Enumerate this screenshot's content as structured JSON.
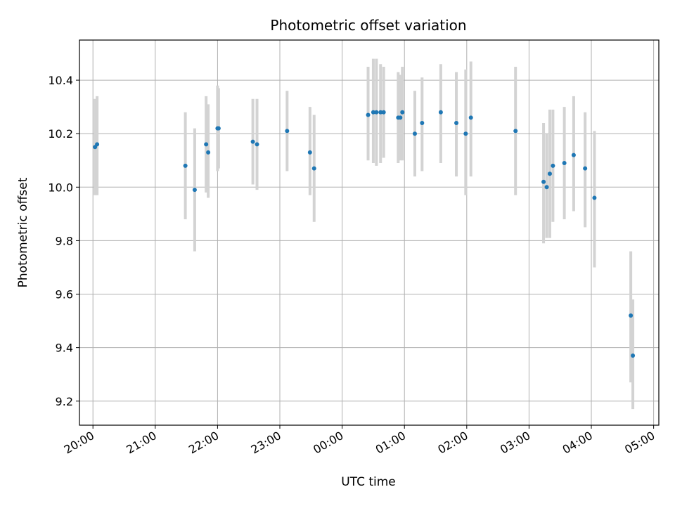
{
  "chart_data": {
    "type": "scatter",
    "title": "Photometric offset variation",
    "xlabel": "UTC time",
    "ylabel": "Photometric offset",
    "grid": true,
    "x_is_time": true,
    "x_range": [
      "19:47",
      "05:05"
    ],
    "y_range": [
      9.11,
      10.55
    ],
    "x_ticks": [
      "20:00",
      "21:00",
      "22:00",
      "23:00",
      "00:00",
      "01:00",
      "02:00",
      "03:00",
      "04:00",
      "05:00"
    ],
    "y_ticks": [
      "9.2",
      "9.4",
      "9.6",
      "9.8",
      "10.0",
      "10.2",
      "10.4"
    ],
    "colors": {
      "point": "#1f77b4",
      "errorbar": "#d3d3d3",
      "grid": "#b0b0b0"
    },
    "points": [
      {
        "t": "20:02",
        "y": 10.15,
        "lo": 9.97,
        "hi": 10.33
      },
      {
        "t": "20:04",
        "y": 10.16,
        "lo": 9.97,
        "hi": 10.34
      },
      {
        "t": "21:29",
        "y": 10.08,
        "lo": 9.88,
        "hi": 10.28
      },
      {
        "t": "21:38",
        "y": 9.99,
        "lo": 9.76,
        "hi": 10.22
      },
      {
        "t": "21:49",
        "y": 10.16,
        "lo": 9.98,
        "hi": 10.34
      },
      {
        "t": "21:51",
        "y": 10.13,
        "lo": 9.96,
        "hi": 10.31
      },
      {
        "t": "22:00",
        "y": 10.22,
        "lo": 10.06,
        "hi": 10.38
      },
      {
        "t": "22:01",
        "y": 10.22,
        "lo": 10.07,
        "hi": 10.37
      },
      {
        "t": "22:34",
        "y": 10.17,
        "lo": 10.01,
        "hi": 10.33
      },
      {
        "t": "22:38",
        "y": 10.16,
        "lo": 9.99,
        "hi": 10.33
      },
      {
        "t": "23:07",
        "y": 10.21,
        "lo": 10.06,
        "hi": 10.36
      },
      {
        "t": "23:29",
        "y": 10.13,
        "lo": 9.97,
        "hi": 10.3
      },
      {
        "t": "23:33",
        "y": 10.07,
        "lo": 9.87,
        "hi": 10.27
      },
      {
        "t": "00:25",
        "y": 10.27,
        "lo": 10.1,
        "hi": 10.45
      },
      {
        "t": "00:30",
        "y": 10.28,
        "lo": 10.09,
        "hi": 10.48
      },
      {
        "t": "00:33",
        "y": 10.28,
        "lo": 10.08,
        "hi": 10.48
      },
      {
        "t": "00:37",
        "y": 10.28,
        "lo": 10.09,
        "hi": 10.46
      },
      {
        "t": "00:40",
        "y": 10.28,
        "lo": 10.11,
        "hi": 10.45
      },
      {
        "t": "00:54",
        "y": 10.26,
        "lo": 10.09,
        "hi": 10.43
      },
      {
        "t": "00:56",
        "y": 10.26,
        "lo": 10.1,
        "hi": 10.42
      },
      {
        "t": "00:58",
        "y": 10.28,
        "lo": 10.1,
        "hi": 10.45
      },
      {
        "t": "01:10",
        "y": 10.2,
        "lo": 10.04,
        "hi": 10.36
      },
      {
        "t": "01:17",
        "y": 10.24,
        "lo": 10.06,
        "hi": 10.41
      },
      {
        "t": "01:35",
        "y": 10.28,
        "lo": 10.09,
        "hi": 10.46
      },
      {
        "t": "01:50",
        "y": 10.24,
        "lo": 10.04,
        "hi": 10.43
      },
      {
        "t": "01:59",
        "y": 10.2,
        "lo": 9.97,
        "hi": 10.44
      },
      {
        "t": "02:04",
        "y": 10.26,
        "lo": 10.04,
        "hi": 10.47
      },
      {
        "t": "02:47",
        "y": 10.21,
        "lo": 9.97,
        "hi": 10.45
      },
      {
        "t": "03:14",
        "y": 10.02,
        "lo": 9.79,
        "hi": 10.24
      },
      {
        "t": "03:17",
        "y": 10.0,
        "lo": 9.81,
        "hi": 10.2
      },
      {
        "t": "03:20",
        "y": 10.05,
        "lo": 9.81,
        "hi": 10.29
      },
      {
        "t": "03:23",
        "y": 10.08,
        "lo": 9.87,
        "hi": 10.29
      },
      {
        "t": "03:34",
        "y": 10.09,
        "lo": 9.88,
        "hi": 10.3
      },
      {
        "t": "03:43",
        "y": 10.12,
        "lo": 9.91,
        "hi": 10.34
      },
      {
        "t": "03:54",
        "y": 10.07,
        "lo": 9.85,
        "hi": 10.28
      },
      {
        "t": "04:03",
        "y": 9.96,
        "lo": 9.7,
        "hi": 10.21
      },
      {
        "t": "04:38",
        "y": 9.52,
        "lo": 9.27,
        "hi": 9.76
      },
      {
        "t": "04:40",
        "y": 9.37,
        "lo": 9.17,
        "hi": 9.58
      }
    ]
  }
}
